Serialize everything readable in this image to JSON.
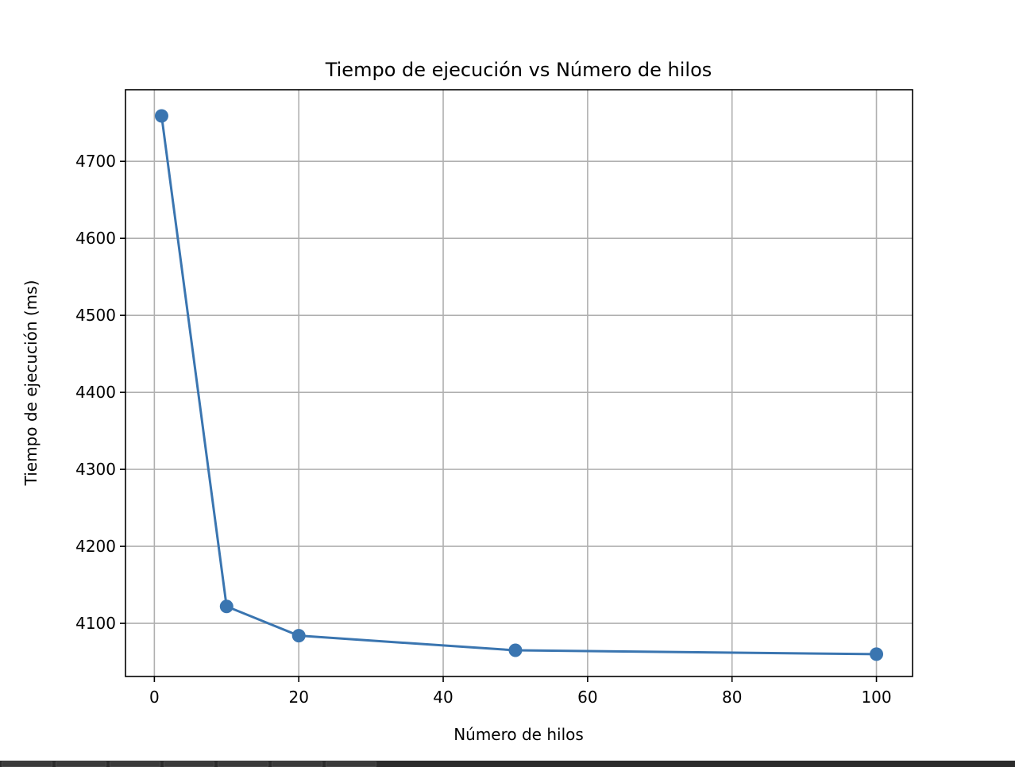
{
  "chart_data": {
    "type": "line",
    "title": "Tiempo de ejecución vs Número de hilos",
    "xlabel": "Número de hilos",
    "ylabel": "Tiempo de ejecución (ms)",
    "x": [
      1,
      10,
      20,
      50,
      100
    ],
    "series": [
      {
        "values": [
          4759,
          4122,
          4084,
          4065,
          4060
        ]
      }
    ],
    "xlim": [
      -4,
      105
    ],
    "ylim": [
      4031,
      4793
    ],
    "xticks": [
      0,
      20,
      40,
      60,
      80,
      100
    ],
    "yticks": [
      4100,
      4200,
      4300,
      4400,
      4500,
      4600,
      4700
    ],
    "grid": true,
    "line_color": "#3a75b0",
    "marker": "circle"
  },
  "taskbar": {
    "button_count": 7
  }
}
